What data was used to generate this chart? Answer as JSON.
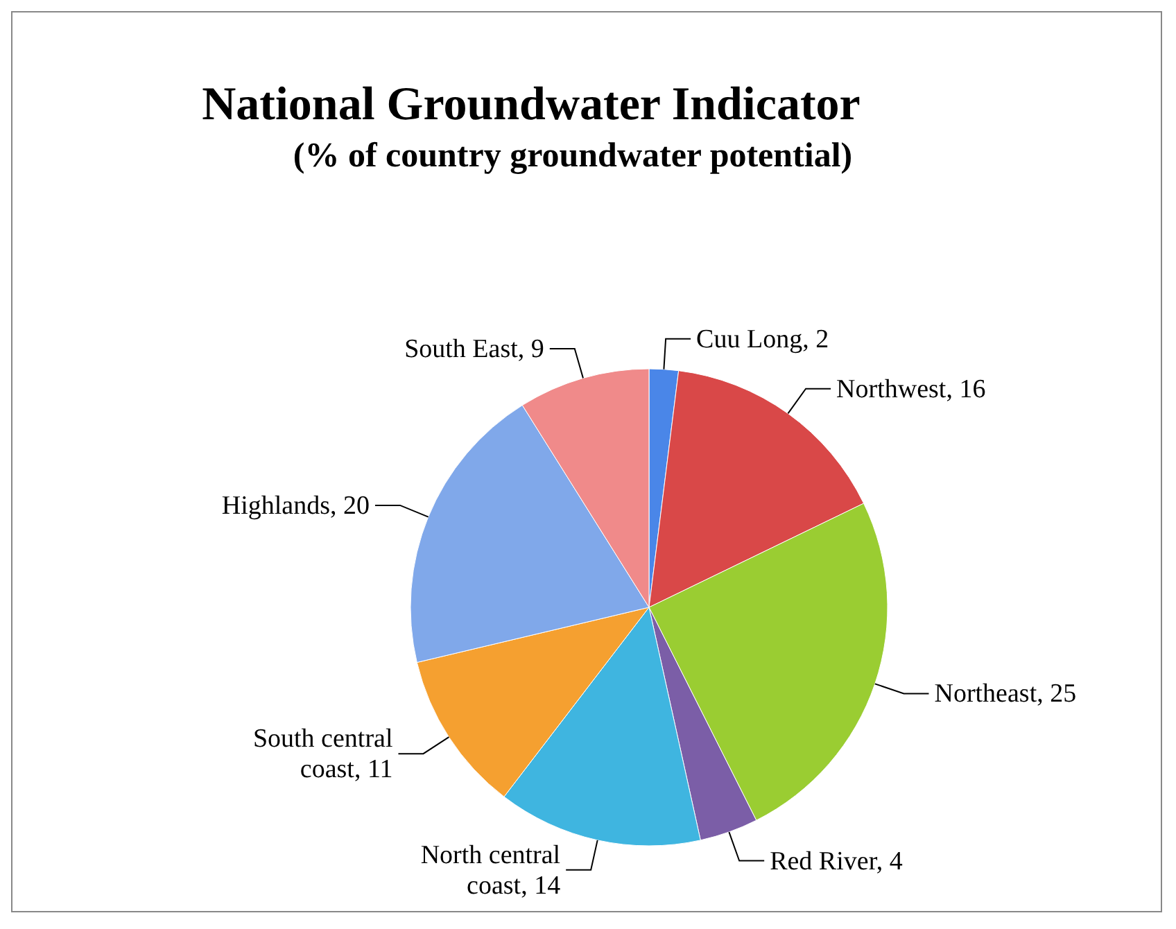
{
  "chart_data": {
    "type": "pie",
    "title": "National Groundwater Indicator",
    "subtitle": "(% of country groundwater potential)",
    "categories": [
      "Cuu Long",
      "Northwest",
      "Northeast",
      "Red River",
      "North central coast",
      "South central coast",
      "Highlands",
      "South East"
    ],
    "values": [
      2,
      16,
      25,
      4,
      14,
      11,
      20,
      9
    ],
    "colors": [
      "#4a86e8",
      "#d94848",
      "#9acd32",
      "#7b5ea7",
      "#3fb5e0",
      "#f5a030",
      "#80a8ea",
      "#f08a8a"
    ],
    "value_labels": [
      ", 2",
      ", 16",
      ", 25",
      ", 4",
      ", 14",
      ", 11",
      ", 20",
      ", 9"
    ],
    "legend": false
  }
}
